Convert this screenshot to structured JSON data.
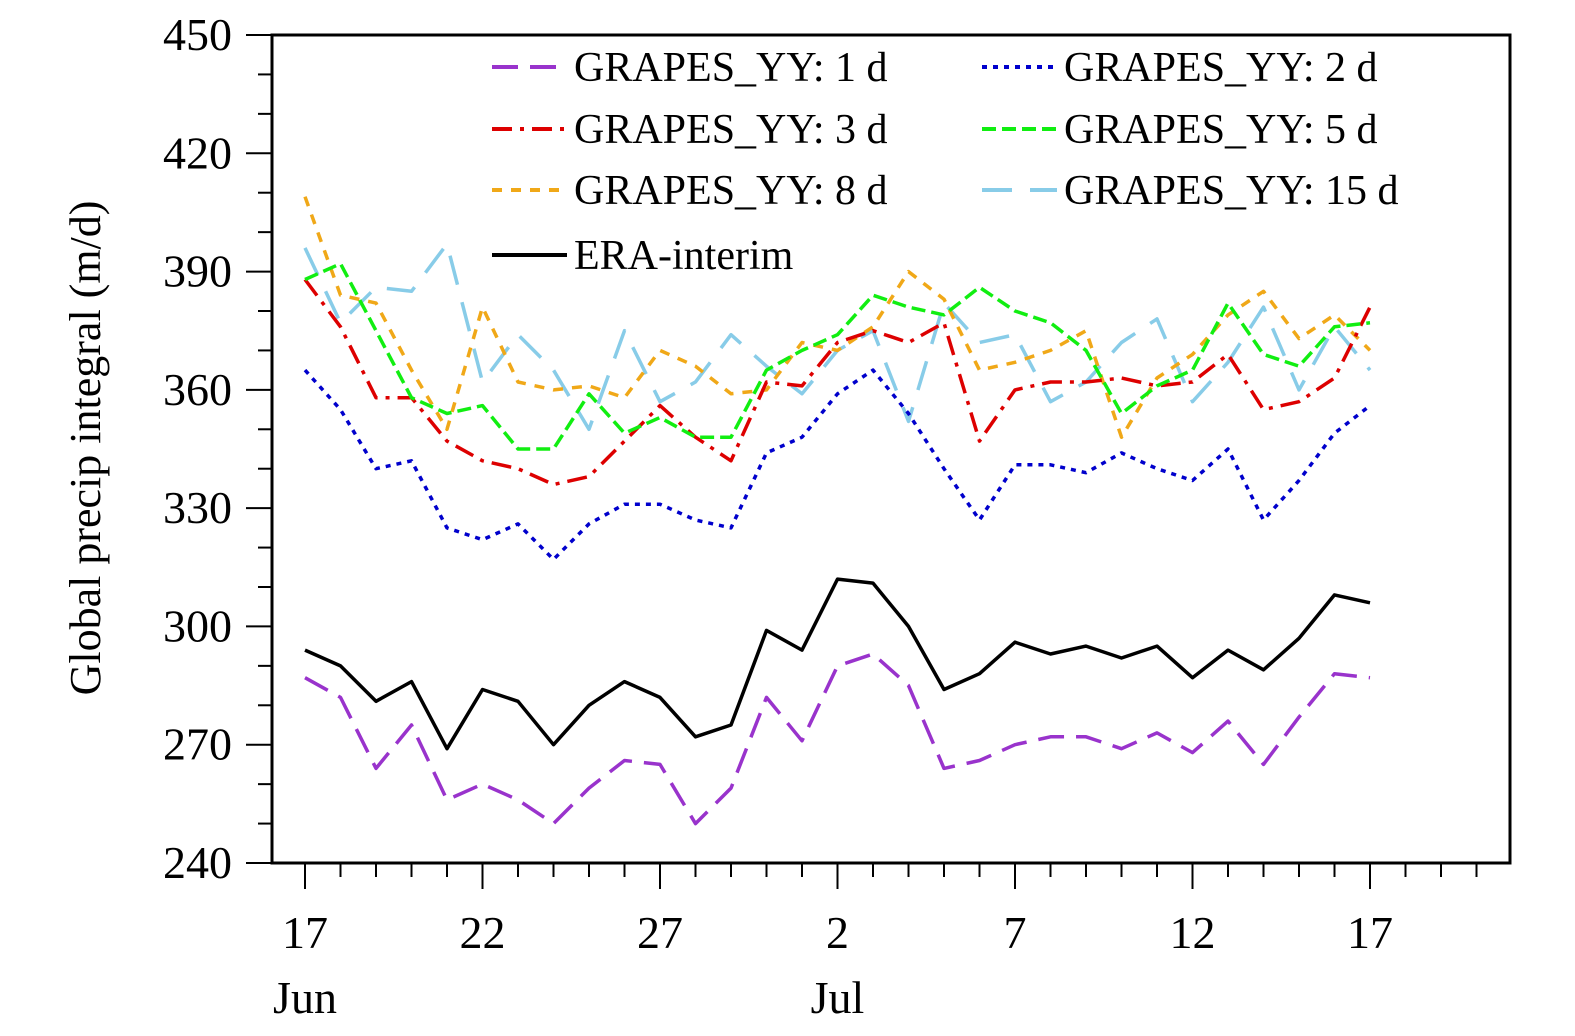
{
  "chart_data": {
    "type": "line",
    "ylabel": "Global precip integral (m/d)",
    "ylim": [
      240,
      450
    ],
    "yticks": [
      240,
      270,
      300,
      330,
      360,
      390,
      420,
      450
    ],
    "y_minor_step": 10,
    "x": [
      "Jun 17",
      "Jun 18",
      "Jun 19",
      "Jun 20",
      "Jun 21",
      "Jun 22",
      "Jun 23",
      "Jun 24",
      "Jun 25",
      "Jun 26",
      "Jun 27",
      "Jun 28",
      "Jun 29",
      "Jun 30",
      "Jul 1",
      "Jul 2",
      "Jul 3",
      "Jul 4",
      "Jul 5",
      "Jul 6",
      "Jul 7",
      "Jul 8",
      "Jul 9",
      "Jul 10",
      "Jul 11",
      "Jul 12",
      "Jul 13",
      "Jul 14",
      "Jul 15",
      "Jul 16",
      "Jul 17"
    ],
    "xlim": [
      "Jun 17",
      "Jul 21"
    ],
    "xticks": [
      {
        "date": "Jun 17",
        "label": "17",
        "month": "Jun"
      },
      {
        "date": "Jun 22",
        "label": "22",
        "month": ""
      },
      {
        "date": "Jun 27",
        "label": "27",
        "month": ""
      },
      {
        "date": "Jul 2",
        "label": "2",
        "month": "Jul"
      },
      {
        "date": "Jul 7",
        "label": "7",
        "month": ""
      },
      {
        "date": "Jul 12",
        "label": "12",
        "month": ""
      },
      {
        "date": "Jul 17",
        "label": "17",
        "month": ""
      }
    ],
    "legend_position": "top-right",
    "grid": false,
    "series": [
      {
        "name": "GRAPES_YY: 1 d",
        "color": "#9933cc",
        "dash": "long-dash",
        "values": [
          287,
          282,
          264,
          275,
          256,
          260,
          256,
          250,
          259,
          266,
          265,
          250,
          259,
          282,
          271,
          290,
          293,
          285,
          264,
          266,
          270,
          272,
          272,
          269,
          273,
          268,
          276,
          265,
          277,
          288,
          287
        ]
      },
      {
        "name": "GRAPES_YY: 2 d",
        "color": "#0000cc",
        "dash": "dot",
        "values": [
          365,
          355,
          340,
          342,
          325,
          322,
          326,
          317,
          326,
          331,
          331,
          327,
          325,
          344,
          348,
          359,
          365,
          354,
          340,
          327,
          341,
          341,
          339,
          344,
          340,
          337,
          345,
          327,
          337,
          349,
          356
        ]
      },
      {
        "name": "GRAPES_YY: 3 d",
        "color": "#dd0000",
        "dash": "dash-dot",
        "values": [
          388,
          376,
          358,
          358,
          347,
          342,
          340,
          336,
          338,
          347,
          356,
          348,
          342,
          362,
          361,
          372,
          375,
          372,
          377,
          347,
          360,
          362,
          362,
          363,
          361,
          362,
          369,
          355,
          357,
          363,
          381
        ]
      },
      {
        "name": "GRAPES_YY: 5 d",
        "color": "#11ee11",
        "dash": "dash",
        "values": [
          388,
          392,
          375,
          358,
          354,
          356,
          345,
          345,
          359,
          349,
          353,
          348,
          348,
          365,
          370,
          374,
          384,
          381,
          379,
          386,
          380,
          377,
          370,
          354,
          361,
          365,
          382,
          369,
          366,
          376,
          377
        ]
      },
      {
        "name": "GRAPES_YY: 8 d",
        "color": "#f0a818",
        "dash": "short-dash",
        "values": [
          409,
          384,
          382,
          365,
          350,
          381,
          362,
          360,
          361,
          358,
          370,
          366,
          359,
          360,
          372,
          370,
          376,
          390,
          383,
          365,
          367,
          370,
          375,
          348,
          363,
          369,
          379,
          385,
          373,
          379,
          370
        ]
      },
      {
        "name": "GRAPES_YY: 15 d",
        "color": "#88cce8",
        "dash": "long-dash-gap",
        "values": [
          396,
          377,
          386,
          385,
          397,
          362,
          374,
          365,
          350,
          375,
          357,
          362,
          374,
          366,
          359,
          370,
          375,
          352,
          382,
          372,
          374,
          357,
          362,
          372,
          378,
          357,
          367,
          381,
          360,
          376,
          365
        ]
      },
      {
        "name": "ERA-interim",
        "color": "#000000",
        "dash": "solid",
        "values": [
          294,
          290,
          281,
          286,
          269,
          284,
          281,
          270,
          280,
          286,
          282,
          272,
          275,
          299,
          294,
          312,
          311,
          300,
          284,
          288,
          296,
          293,
          295,
          292,
          295,
          287,
          294,
          289,
          297,
          308,
          306
        ]
      }
    ]
  }
}
